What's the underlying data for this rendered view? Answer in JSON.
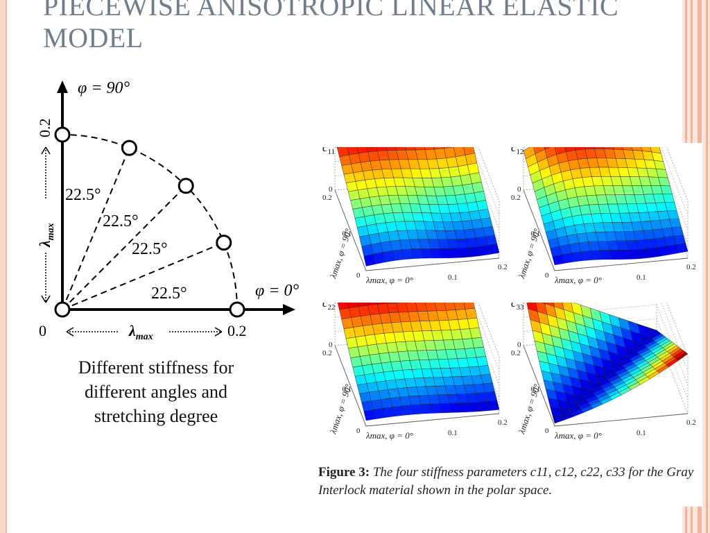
{
  "slide": {
    "title_line1": "PIECEWISE ANISOTROPIC LINEAR ELASTIC",
    "title_line2": "MODEL",
    "caption_line1": "Different stiffness for",
    "caption_line2": "different angles and",
    "caption_line3": "stretching  degree"
  },
  "polar_diagram": {
    "phi_top": "φ = 90°",
    "phi_right": "φ = 0°",
    "lambda_max": "λmax",
    "lambda_sym": "λ",
    "lambda_sub": "max",
    "tick_zero": "0",
    "tick_top": "0.2",
    "tick_right": "0.2",
    "angle_label_1": "22.5°",
    "angle_label_2": "22.5°",
    "angle_label_3": "22.5°",
    "angle_label_4": "22.5°",
    "node_angles_deg": [
      0,
      22.5,
      45,
      67.5,
      90
    ]
  },
  "figure": {
    "caption_label": "Figure 3:",
    "caption_text": "The four stiffness parameters c11, c12, c22, c33 for the Gray Interlock material shown in the polar space.",
    "axis_text_right": "λmax, φ = 0°",
    "axis_text_left": "λmax, φ = 90°",
    "axis_tick_zero": "0",
    "axis_tick_mid": "0.1",
    "axis_tick_max": "0.2",
    "panels": [
      {
        "name": "c11",
        "label": "c11",
        "label_sym": "c",
        "label_sub": "11",
        "z_max": "150",
        "z_min": "0"
      },
      {
        "name": "c12",
        "label": "c12",
        "label_sym": "c",
        "label_sub": "12",
        "z_max": "150",
        "z_min": "0"
      },
      {
        "name": "c22",
        "label": "c22",
        "label_sym": "c",
        "label_sub": "22",
        "z_max": "600",
        "z_min": "0"
      },
      {
        "name": "c33",
        "label": "c33",
        "label_sym": "c",
        "label_sub": "33",
        "z_max": "60",
        "z_min": "0"
      }
    ]
  }
}
